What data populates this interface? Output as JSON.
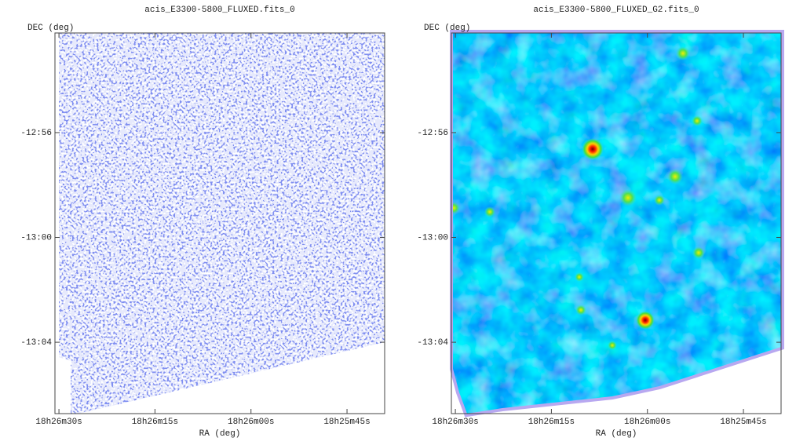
{
  "chart_data": [
    {
      "type": "image",
      "title": "acis_E3300-5800_FLUXED.fits_0",
      "xlabel": "RA (deg)",
      "ylabel": "DEC (deg)",
      "xlim": [
        276.6276,
        276.413
      ],
      "ylim": [
        -13.1121,
        -12.8699
      ],
      "xticks": [
        {
          "value": 276.625,
          "label": "18h26m30s"
        },
        {
          "value": 276.5625,
          "label": "18h26m15s"
        },
        {
          "value": 276.5,
          "label": "18h26m00s"
        },
        {
          "value": 276.4375,
          "label": "18h25m45s"
        }
      ],
      "yticks": [
        {
          "value": -12.9333,
          "label": "-12:56"
        },
        {
          "value": -13.0,
          "label": "-13:00"
        },
        {
          "value": -13.0667,
          "label": "-13:04"
        }
      ]
    },
    {
      "type": "image",
      "title": "acis_E3300-5800_FLUXED_G2.fits_0",
      "xlabel": "RA (deg)",
      "ylabel": "DEC (deg)",
      "xlim": [
        276.6276,
        276.413
      ],
      "ylim": [
        -13.1121,
        -12.8699
      ],
      "xticks": [
        {
          "value": 276.625,
          "label": "18h26m30s"
        },
        {
          "value": 276.5625,
          "label": "18h26m15s"
        },
        {
          "value": 276.5,
          "label": "18h26m00s"
        },
        {
          "value": 276.4375,
          "label": "18h25m45s"
        }
      ],
      "yticks": [
        {
          "value": -12.9333,
          "label": "-12:56"
        },
        {
          "value": -13.0,
          "label": "-13:00"
        },
        {
          "value": -13.0667,
          "label": "-13:04"
        }
      ]
    }
  ]
}
